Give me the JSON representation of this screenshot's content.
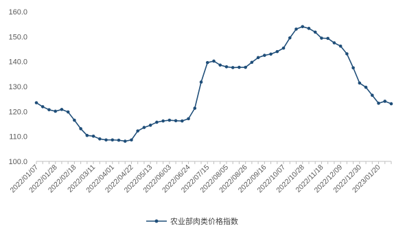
{
  "chart_data": {
    "type": "line",
    "title": "",
    "xlabel": "",
    "ylabel": "",
    "ylim": [
      100,
      160
    ],
    "yticks": [
      "100.0",
      "110.0",
      "120.0",
      "130.0",
      "140.0",
      "150.0",
      "160.0"
    ],
    "x_tick_labels": [
      "2022/01/07",
      "2022/01/28",
      "2022/02/18",
      "2022/03/11",
      "2022/04/01",
      "2022/04/22",
      "2022/05/13",
      "2022/06/03",
      "2022/06/24",
      "2022/07/15",
      "2022/08/05",
      "2022/08/26",
      "2022/09/16",
      "2022/10/07",
      "2022/10/28",
      "2022/11/18",
      "2022/12/09",
      "2022/12/30",
      "2023/01/20"
    ],
    "grid": false,
    "legend_position": "bottom",
    "colors": {
      "line": "#1f4e79",
      "axis": "#bfbfbf"
    },
    "series": [
      {
        "name": "农业部肉类价格指数",
        "x": [
          "2022/01/07",
          "2022/01/14",
          "2022/01/21",
          "2022/01/28",
          "2022/02/04",
          "2022/02/11",
          "2022/02/18",
          "2022/02/25",
          "2022/03/04",
          "2022/03/11",
          "2022/03/18",
          "2022/03/25",
          "2022/04/01",
          "2022/04/08",
          "2022/04/15",
          "2022/04/22",
          "2022/04/29",
          "2022/05/06",
          "2022/05/13",
          "2022/05/20",
          "2022/05/27",
          "2022/06/03",
          "2022/06/10",
          "2022/06/17",
          "2022/06/24",
          "2022/07/01",
          "2022/07/08",
          "2022/07/15",
          "2022/07/22",
          "2022/07/29",
          "2022/08/05",
          "2022/08/12",
          "2022/08/19",
          "2022/08/26",
          "2022/09/02",
          "2022/09/09",
          "2022/09/16",
          "2022/09/23",
          "2022/09/30",
          "2022/10/07",
          "2022/10/14",
          "2022/10/21",
          "2022/10/28",
          "2022/11/04",
          "2022/11/11",
          "2022/11/18",
          "2022/11/25",
          "2022/12/02",
          "2022/12/09",
          "2022/12/16",
          "2022/12/23",
          "2022/12/30",
          "2023/01/06",
          "2023/01/13",
          "2023/01/20",
          "2023/01/27",
          "2023/02/03"
        ],
        "values": [
          123.5,
          121.9,
          120.7,
          120.1,
          120.8,
          119.8,
          116.5,
          113.1,
          110.4,
          110.1,
          109.0,
          108.6,
          108.6,
          108.5,
          108.1,
          108.6,
          112.2,
          113.6,
          114.5,
          115.7,
          116.2,
          116.5,
          116.3,
          116.2,
          117.1,
          121.3,
          131.8,
          139.6,
          140.2,
          138.6,
          137.9,
          137.6,
          137.7,
          137.7,
          139.7,
          141.6,
          142.5,
          143.0,
          144.0,
          145.4,
          149.5,
          153.0,
          154.0,
          153.3,
          151.8,
          149.4,
          149.3,
          147.5,
          146.2,
          143.1,
          137.5,
          131.4,
          129.7,
          126.5,
          123.3,
          124.1,
          123.1
        ]
      }
    ]
  }
}
